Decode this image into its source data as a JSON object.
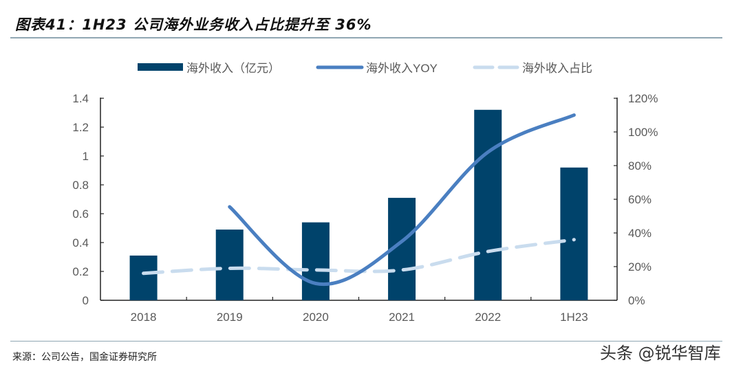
{
  "title": "图表41：1H23 公司海外业务收入占比提升至 36%",
  "source": "来源：公司公告，国金证券研究所",
  "watermark": "头条 @锐华智库",
  "colors": {
    "bar": "#00436b",
    "yoy_line": "#4a7fc1",
    "share_line": "#c9dcee",
    "axis": "#222222",
    "tick_text": "#595959"
  },
  "chart_data": {
    "type": "bar",
    "title": "1H23 公司海外业务收入占比提升至 36%",
    "categories": [
      "2018",
      "2019",
      "2020",
      "2021",
      "2022",
      "1H23"
    ],
    "series": [
      {
        "name": "海外收入（亿元）",
        "type": "bar",
        "axis": "left",
        "values": [
          0.31,
          0.49,
          0.54,
          0.71,
          1.32,
          0.92
        ]
      },
      {
        "name": "海外收入YOY",
        "type": "line",
        "style": "solid-smooth",
        "axis": "right",
        "values": [
          null,
          55.5,
          10,
          35,
          88,
          110
        ]
      },
      {
        "name": "海外收入占比",
        "type": "line",
        "style": "dashed",
        "axis": "right",
        "values": [
          16,
          19,
          18,
          18,
          29,
          36
        ]
      }
    ],
    "left_axis": {
      "ylim": [
        0,
        1.4
      ],
      "ticks": [
        "0",
        "0.2",
        "0.4",
        "0.6",
        "0.8",
        "1",
        "1.2",
        "1.4"
      ]
    },
    "right_axis": {
      "ylim": [
        0,
        120
      ],
      "ticks": [
        "0%",
        "20%",
        "40%",
        "60%",
        "80%",
        "100%",
        "120%"
      ]
    },
    "xlabel": "",
    "ylabel": "",
    "grid": false,
    "legend": "top-center"
  }
}
